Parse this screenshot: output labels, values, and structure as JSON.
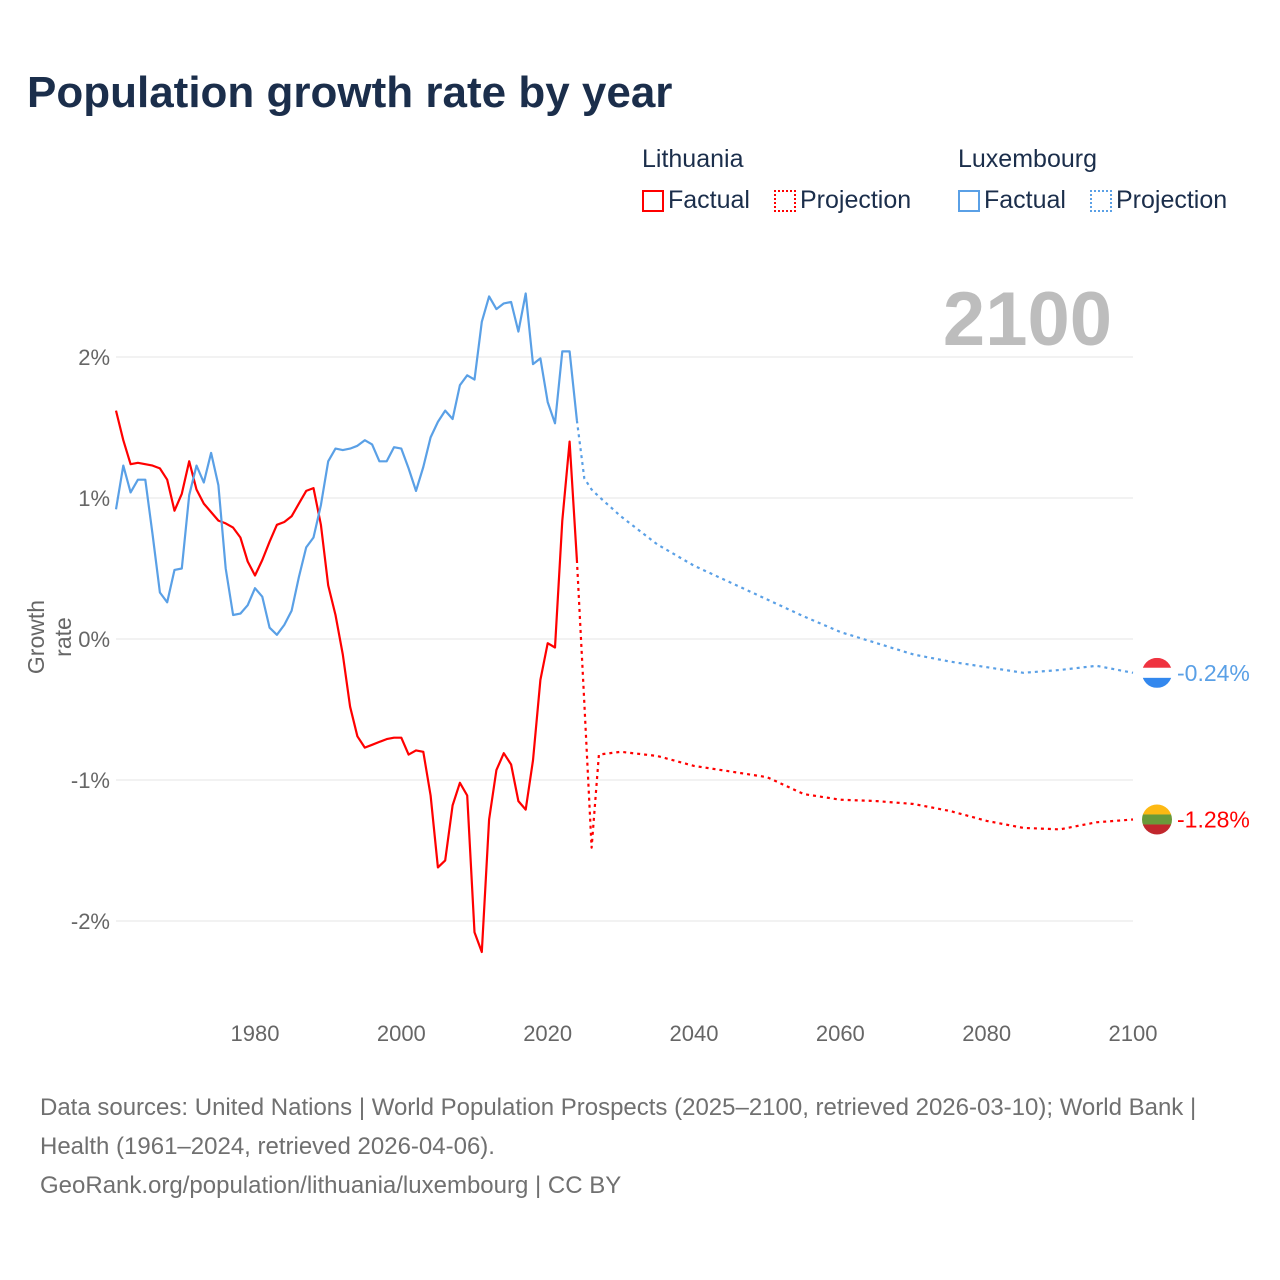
{
  "title": "Population growth rate by year",
  "current_year": "2100",
  "legend": {
    "lithuania": {
      "name": "Lithuania",
      "factual": "Factual",
      "projection": "Projection"
    },
    "luxembourg": {
      "name": "Luxembourg",
      "factual": "Factual",
      "projection": "Projection"
    }
  },
  "end_labels": {
    "luxembourg": "-0.24%",
    "lithuania": "-1.28%"
  },
  "footer": {
    "sources": "Data sources: United Nations | World Population Prospects (2025–2100, retrieved 2026-03-10); World Bank | Health (1961–2024, retrieved 2026-04-06).",
    "credit": "GeoRank.org/population/lithuania/luxembourg | CC BY"
  },
  "colors": {
    "lithuania": "#ff0000",
    "luxembourg": "#5aa0e6",
    "title": "#1b2e4b",
    "grid": "#e6e6e6"
  },
  "chart_data": {
    "type": "line",
    "title": "Population growth rate by year",
    "xlabel": "",
    "ylabel": "Growth rate",
    "xlim": [
      1961,
      2100
    ],
    "ylim": [
      -2.5,
      2.6
    ],
    "x_ticks": [
      1980,
      2000,
      2020,
      2040,
      2060,
      2080,
      2100
    ],
    "x_tick_labels": [
      "1980",
      "2000",
      "2020",
      "2040",
      "2060",
      "2080",
      "2100"
    ],
    "y_ticks": [
      2,
      1,
      0,
      -1,
      -2
    ],
    "y_tick_labels": [
      "2%",
      "1%",
      "0%",
      "-1%",
      "-2%"
    ],
    "grid": true,
    "legend_position": "top-right",
    "factual_x": [
      1961,
      1962,
      1963,
      1964,
      1965,
      1966,
      1967,
      1968,
      1969,
      1970,
      1971,
      1972,
      1973,
      1974,
      1975,
      1976,
      1977,
      1978,
      1979,
      1980,
      1981,
      1982,
      1983,
      1984,
      1985,
      1986,
      1987,
      1988,
      1989,
      1990,
      1991,
      1992,
      1993,
      1994,
      1995,
      1996,
      1997,
      1998,
      1999,
      2000,
      2001,
      2002,
      2003,
      2004,
      2005,
      2006,
      2007,
      2008,
      2009,
      2010,
      2011,
      2012,
      2013,
      2014,
      2015,
      2016,
      2017,
      2018,
      2019,
      2020,
      2021,
      2022,
      2023,
      2024
    ],
    "projection_x": [
      2024,
      2025,
      2026,
      2027,
      2030,
      2035,
      2040,
      2045,
      2050,
      2055,
      2060,
      2065,
      2070,
      2075,
      2080,
      2085,
      2090,
      2095,
      2100
    ],
    "series": [
      {
        "name": "Lithuania",
        "kind": "Factual",
        "values": [
          1.62,
          1.41,
          1.24,
          1.25,
          1.24,
          1.23,
          1.21,
          1.13,
          0.91,
          1.03,
          1.26,
          1.06,
          0.96,
          0.9,
          0.84,
          0.82,
          0.79,
          0.72,
          0.55,
          0.45,
          0.56,
          0.69,
          0.81,
          0.83,
          0.87,
          0.96,
          1.05,
          1.07,
          0.81,
          0.38,
          0.17,
          -0.11,
          -0.48,
          -0.69,
          -0.77,
          -0.75,
          -0.73,
          -0.71,
          -0.7,
          -0.7,
          -0.82,
          -0.79,
          -0.8,
          -1.11,
          -1.62,
          -1.57,
          -1.18,
          -1.02,
          -1.11,
          -2.08,
          -2.22,
          -1.28,
          -0.93,
          -0.81,
          -0.89,
          -1.15,
          -1.21,
          -0.86,
          -0.29,
          -0.03,
          -0.06,
          0.84,
          1.4,
          0.56
        ]
      },
      {
        "name": "Lithuania",
        "kind": "Projection",
        "values": [
          0.56,
          -0.45,
          -1.48,
          -0.82,
          -0.8,
          -0.83,
          -0.9,
          -0.94,
          -0.98,
          -1.1,
          -1.14,
          -1.15,
          -1.17,
          -1.22,
          -1.29,
          -1.34,
          -1.35,
          -1.3,
          -1.28
        ]
      },
      {
        "name": "Luxembourg",
        "kind": "Factual",
        "values": [
          0.92,
          1.23,
          1.04,
          1.13,
          1.13,
          0.74,
          0.33,
          0.26,
          0.49,
          0.5,
          1.02,
          1.23,
          1.11,
          1.32,
          1.09,
          0.5,
          0.17,
          0.18,
          0.24,
          0.36,
          0.3,
          0.08,
          0.03,
          0.1,
          0.2,
          0.44,
          0.65,
          0.72,
          0.95,
          1.26,
          1.35,
          1.34,
          1.35,
          1.37,
          1.41,
          1.38,
          1.26,
          1.26,
          1.36,
          1.35,
          1.21,
          1.05,
          1.22,
          1.43,
          1.54,
          1.62,
          1.56,
          1.8,
          1.87,
          1.84,
          2.25,
          2.43,
          2.34,
          2.38,
          2.39,
          2.18,
          2.45,
          1.95,
          1.99,
          1.68,
          1.53,
          2.04,
          2.04,
          1.55
        ]
      },
      {
        "name": "Luxembourg",
        "kind": "Projection",
        "values": [
          1.55,
          1.14,
          1.06,
          1.01,
          0.87,
          0.67,
          0.52,
          0.4,
          0.28,
          0.16,
          0.05,
          -0.03,
          -0.11,
          -0.16,
          -0.2,
          -0.24,
          -0.22,
          -0.19,
          -0.24
        ]
      }
    ]
  }
}
